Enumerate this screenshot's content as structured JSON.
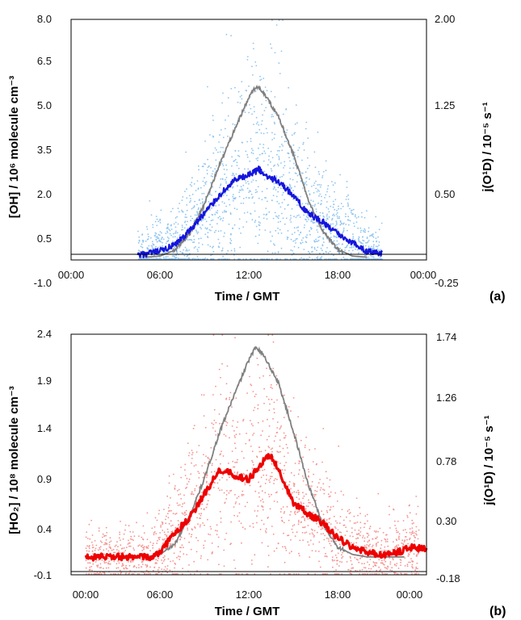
{
  "chart_data": [
    {
      "type": "scatter",
      "panel_label": "(a)",
      "xlabel": "Time / GMT",
      "x_ticks": [
        "00:00",
        "06:00",
        "12:00",
        "18:00",
        "00:00"
      ],
      "xlim_hours": [
        0,
        24
      ],
      "ylabel_left": "[OH] / 10⁶ molecule cm⁻³",
      "ylim_left": [
        -1.0,
        8.0
      ],
      "yticks_left": [
        "8.0",
        "6.5",
        "5.0",
        "3.5",
        "2.0",
        "0.5",
        "-1.0"
      ],
      "ylabel_right": "j(O¹D) / 10⁻⁵ s⁻¹",
      "ylim_right": [
        -0.25,
        2.0
      ],
      "yticks_right": [
        "2.00",
        "1.25",
        "0.50",
        "-0.25"
      ],
      "colors": {
        "scatter": "#8ec4f0",
        "mean": "#1515dd",
        "jo1d": "#808080"
      },
      "series": [
        {
          "axis": "left",
          "kind": "scatter",
          "x_range_hours": [
            4.5,
            21.0
          ],
          "spread": "large around midday"
        },
        {
          "axis": "left",
          "kind": "line",
          "x": [
            4.5,
            6,
            7,
            8,
            9,
            10,
            11,
            12,
            12.7,
            13,
            14,
            15,
            16,
            17,
            18,
            19,
            20,
            21
          ],
          "y": [
            0.05,
            0.2,
            0.4,
            0.9,
            1.5,
            2.1,
            2.6,
            2.8,
            3.0,
            2.8,
            2.6,
            2.1,
            1.5,
            1.2,
            0.8,
            0.5,
            0.2,
            0.1
          ]
        },
        {
          "axis": "right",
          "kind": "line",
          "x": [
            5,
            6,
            7,
            8,
            9,
            10,
            11,
            12,
            12.5,
            13,
            14,
            15,
            16,
            17,
            18,
            19,
            20
          ],
          "y": [
            0.0,
            0.01,
            0.06,
            0.2,
            0.45,
            0.78,
            1.08,
            1.36,
            1.46,
            1.4,
            1.2,
            0.88,
            0.5,
            0.22,
            0.07,
            0.01,
            0.0
          ]
        }
      ]
    },
    {
      "type": "scatter",
      "panel_label": "(b)",
      "xlabel": "Time / GMT",
      "x_ticks": [
        "00:00",
        "06:00",
        "12:00",
        "18:00",
        "00:00"
      ],
      "xlim_hours": [
        0,
        24
      ],
      "ylabel_left": "[HO₂] / 10⁸ molecule cm⁻³",
      "ylim_left": [
        -0.1,
        2.4
      ],
      "yticks_left": [
        "2.4",
        "1.9",
        "1.4",
        "0.9",
        "0.4",
        "-0.1"
      ],
      "ylabel_right": "j(O¹D) / 10⁻⁵ s⁻¹",
      "ylim_right": [
        -0.18,
        1.74
      ],
      "yticks_right": [
        "1.74",
        "1.26",
        "0.78",
        "0.30",
        "-0.18"
      ],
      "colors": {
        "scatter": "#f5928e",
        "mean": "#ee0000",
        "jo1d": "#808080"
      },
      "series": [
        {
          "axis": "left",
          "kind": "scatter",
          "x_range_hours": [
            1.0,
            23.5
          ],
          "spread": "large around midday"
        },
        {
          "axis": "left",
          "kind": "line",
          "x": [
            1,
            2,
            3,
            4,
            5,
            5.5,
            6,
            7,
            8,
            9,
            10,
            11,
            12,
            13,
            13.5,
            14,
            15,
            16,
            17,
            18,
            19,
            20,
            21,
            22,
            23,
            24
          ],
          "y": [
            0.1,
            0.1,
            0.1,
            0.1,
            0.1,
            0.1,
            0.15,
            0.35,
            0.5,
            0.75,
            1.0,
            0.95,
            0.9,
            1.1,
            1.15,
            1.0,
            0.65,
            0.55,
            0.45,
            0.3,
            0.2,
            0.15,
            0.12,
            0.15,
            0.2,
            0.18
          ]
        },
        {
          "axis": "right",
          "kind": "line",
          "x": [
            5,
            6,
            7,
            8,
            9,
            10,
            11,
            12,
            12.5,
            13,
            14,
            15,
            16,
            17,
            18,
            19,
            20,
            22.5
          ],
          "y": [
            0.0,
            0.02,
            0.1,
            0.32,
            0.62,
            0.98,
            1.28,
            1.56,
            1.67,
            1.6,
            1.38,
            1.0,
            0.58,
            0.26,
            0.08,
            0.02,
            0.0,
            0.0
          ]
        }
      ]
    }
  ]
}
